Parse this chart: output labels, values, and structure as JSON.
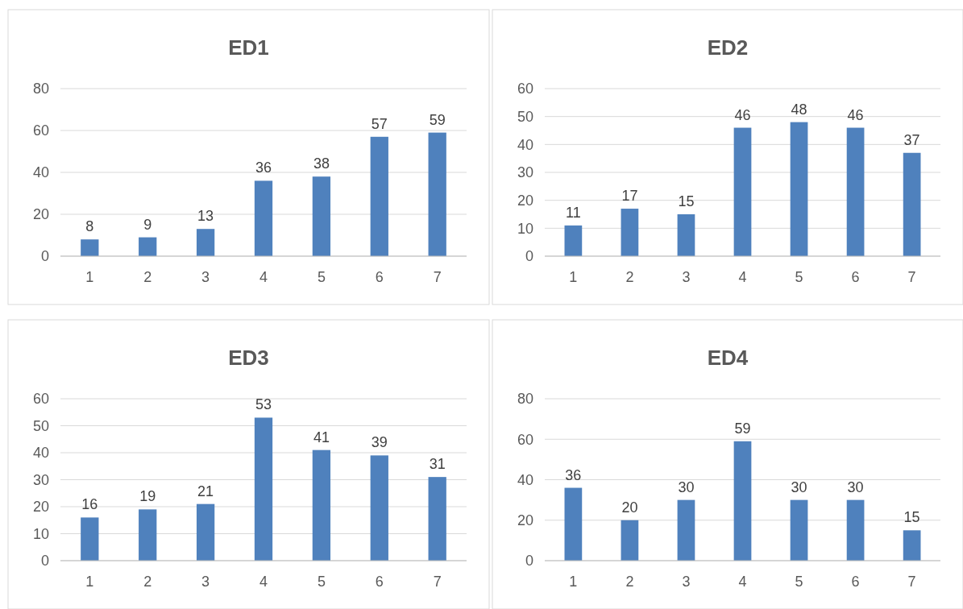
{
  "chart_data": [
    {
      "type": "bar",
      "title": "ED1",
      "categories": [
        "1",
        "2",
        "3",
        "4",
        "5",
        "6",
        "7"
      ],
      "values": [
        8,
        9,
        13,
        36,
        38,
        57,
        59
      ],
      "color": "#4f81bd",
      "ylim": [
        0,
        80
      ],
      "yticks": [
        0,
        20,
        40,
        60,
        80
      ],
      "grid": "y",
      "data_labels": true
    },
    {
      "type": "bar",
      "title": "ED2",
      "categories": [
        "1",
        "2",
        "3",
        "4",
        "5",
        "6",
        "7"
      ],
      "values": [
        11,
        17,
        15,
        46,
        48,
        46,
        37
      ],
      "color": "#4f81bd",
      "ylim": [
        0,
        60
      ],
      "yticks": [
        0,
        10,
        20,
        30,
        40,
        50,
        60
      ],
      "grid": "y",
      "data_labels": true
    },
    {
      "type": "bar",
      "title": "ED3",
      "categories": [
        "1",
        "2",
        "3",
        "4",
        "5",
        "6",
        "7"
      ],
      "values": [
        16,
        19,
        21,
        53,
        41,
        39,
        31
      ],
      "color": "#4f81bd",
      "ylim": [
        0,
        60
      ],
      "yticks": [
        0,
        10,
        20,
        30,
        40,
        50,
        60
      ],
      "grid": "y",
      "data_labels": true
    },
    {
      "type": "bar",
      "title": "ED4",
      "categories": [
        "1",
        "2",
        "3",
        "4",
        "5",
        "6",
        "7"
      ],
      "values": [
        36,
        20,
        30,
        59,
        30,
        30,
        15
      ],
      "color": "#4f81bd",
      "ylim": [
        0,
        80
      ],
      "yticks": [
        0,
        20,
        40,
        60,
        80
      ],
      "grid": "y",
      "data_labels": true
    }
  ]
}
